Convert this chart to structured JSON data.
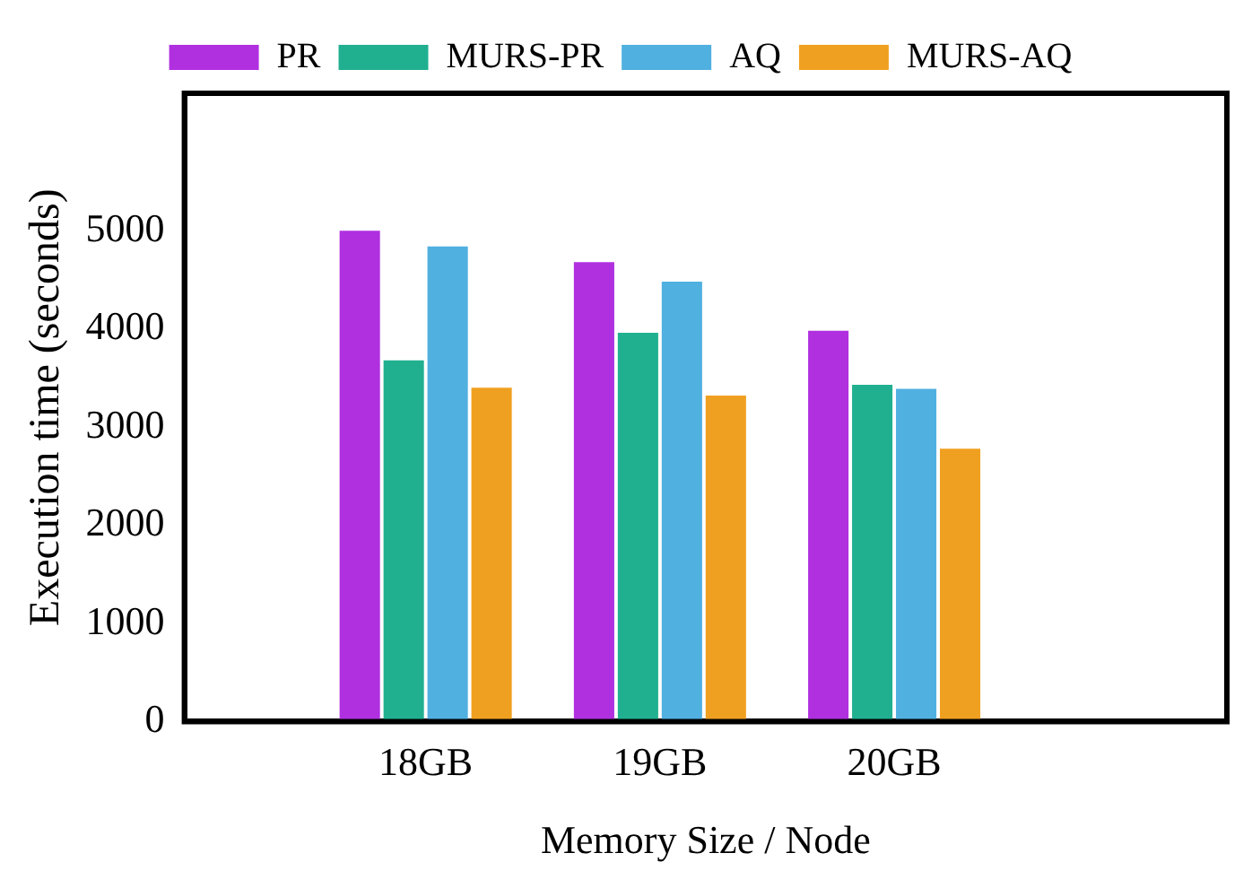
{
  "chart_data": {
    "type": "bar",
    "xlabel": "Memory Size / Node",
    "ylabel": "Execution time (seconds)",
    "categories": [
      "18GB",
      "19GB",
      "20GB"
    ],
    "series": [
      {
        "name": "PR",
        "color": "#b030e0",
        "values": [
          5000,
          4680,
          3980
        ]
      },
      {
        "name": "MURS-PR",
        "color": "#20b090",
        "values": [
          3680,
          3960,
          3430
        ]
      },
      {
        "name": "AQ",
        "color": "#50b0e0",
        "values": [
          4840,
          4480,
          3390
        ]
      },
      {
        "name": "MURS-AQ",
        "color": "#f0a020",
        "values": [
          3400,
          3320,
          2780
        ]
      }
    ],
    "ylim": [
      0,
      6400
    ],
    "yticks": [
      0,
      1000,
      2000,
      3000,
      4000,
      5000
    ],
    "grid": false,
    "legend": "top"
  }
}
